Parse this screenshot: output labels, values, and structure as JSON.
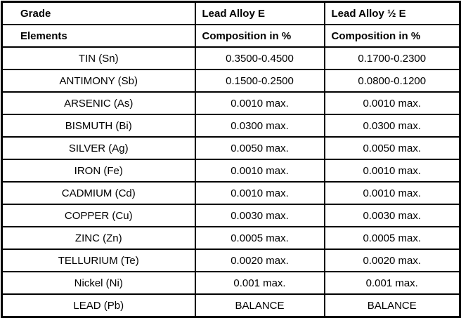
{
  "chart_data": {
    "type": "table",
    "header": {
      "row1": [
        "Grade",
        "Lead Alloy E",
        "Lead Alloy ½ E"
      ],
      "row2": [
        "Elements",
        "Composition in %",
        "Composition in %"
      ]
    },
    "rows": [
      [
        "TIN (Sn)",
        "0.3500-0.4500",
        "0.1700-0.2300"
      ],
      [
        "ANTIMONY (Sb)",
        "0.1500-0.2500",
        "0.0800-0.1200"
      ],
      [
        "ARSENIC (As)",
        "0.0010 max.",
        "0.0010 max."
      ],
      [
        "BISMUTH (Bi)",
        "0.0300 max.",
        "0.0300 max."
      ],
      [
        "SILVER (Ag)",
        "0.0050 max.",
        "0.0050 max."
      ],
      [
        "IRON (Fe)",
        "0.0010 max.",
        "0.0010 max."
      ],
      [
        "CADMIUM (Cd)",
        "0.0010 max.",
        "0.0010 max."
      ],
      [
        "COPPER (Cu)",
        "0.0030 max.",
        "0.0030 max."
      ],
      [
        "ZINC (Zn)",
        "0.0005 max.",
        "0.0005 max."
      ],
      [
        "TELLURIUM (Te)",
        "0.0020 max.",
        "0.0020 max."
      ],
      [
        "Nickel (Ni)",
        "0.001 max.",
        "0.001 max."
      ],
      [
        "LEAD (Pb)",
        "BALANCE",
        "BALANCE"
      ]
    ],
    "layout": {
      "grid": "full-borders",
      "header_rows": 2,
      "value_alignment": "center"
    }
  },
  "colors": {
    "border": "#000000",
    "text": "#000000",
    "background": "#ffffff"
  }
}
